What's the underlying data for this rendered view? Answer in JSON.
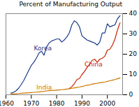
{
  "chart_data": {
    "type": "line",
    "title": "Percent of Manufacturing Output",
    "xlim": [
      1960,
      2006
    ],
    "xticks": [
      1960,
      1970,
      1980,
      1990,
      2000
    ],
    "ylim": [
      0,
      40
    ],
    "yticks": [
      0,
      10,
      20,
      30,
      40
    ],
    "series": [
      {
        "name": "Korea",
        "color": "#1a3a8a",
        "x": [
          1962,
          1963,
          1964,
          1965,
          1966,
          1967,
          1968,
          1969,
          1970,
          1971,
          1972,
          1973,
          1974,
          1975,
          1976,
          1977,
          1978,
          1979,
          1980,
          1981,
          1982,
          1983,
          1984,
          1985,
          1986,
          1987,
          1988,
          1989,
          1990,
          1991,
          1992,
          1993,
          1994,
          1995,
          1996,
          1997,
          1998,
          1999,
          2000,
          2001,
          2002,
          2003,
          2004,
          2005
        ],
        "values": [
          0.8,
          1.2,
          2.0,
          3.2,
          5.0,
          7.0,
          9.5,
          12.0,
          14.5,
          16.0,
          18.0,
          20.5,
          21.5,
          19.5,
          23.5,
          25.5,
          26.5,
          27.0,
          27.5,
          27.5,
          26.0,
          27.0,
          28.5,
          30.5,
          34.5,
          36.5,
          35.5,
          33.5,
          29.0,
          28.0,
          27.0,
          26.5,
          26.0,
          25.5,
          24.5,
          26.0,
          30.5,
          30.5,
          35.0,
          33.5,
          34.0,
          34.5,
          37.5,
          39.0
        ]
      },
      {
        "name": "China",
        "color": "#cc2200",
        "x": [
          1985,
          1986,
          1987,
          1988,
          1989,
          1990,
          1991,
          1992,
          1993,
          1994,
          1995,
          1996,
          1997,
          1998,
          1999,
          2000,
          2001,
          2002,
          2003,
          2004,
          2005
        ],
        "values": [
          3.0,
          4.0,
          5.5,
          7.5,
          8.0,
          10.0,
          11.5,
          13.5,
          15.0,
          17.0,
          17.5,
          16.0,
          17.5,
          18.0,
          19.0,
          22.0,
          22.5,
          24.5,
          27.5,
          32.0,
          35.5
        ]
      },
      {
        "name": "India",
        "color": "#cc7700",
        "x": [
          1962,
          1963,
          1964,
          1965,
          1966,
          1967,
          1968,
          1969,
          1970,
          1971,
          1972,
          1973,
          1974,
          1975,
          1976,
          1977,
          1978,
          1979,
          1980,
          1981,
          1982,
          1983,
          1984,
          1985,
          1986,
          1987,
          1988,
          1989,
          1990,
          1991,
          1992,
          1993,
          1994,
          1995,
          1996,
          1997,
          1998,
          1999,
          2000,
          2001,
          2002,
          2003,
          2004,
          2005
        ],
        "values": [
          0.4,
          0.4,
          0.5,
          0.6,
          0.7,
          0.8,
          0.9,
          1.0,
          1.1,
          1.2,
          1.3,
          1.4,
          1.6,
          1.7,
          1.9,
          2.0,
          2.1,
          2.2,
          2.3,
          2.4,
          2.5,
          2.6,
          2.8,
          3.0,
          3.2,
          3.4,
          3.6,
          3.8,
          4.1,
          4.4,
          4.7,
          4.9,
          5.2,
          5.5,
          5.7,
          5.9,
          6.1,
          6.3,
          6.6,
          6.9,
          7.2,
          7.5,
          7.9,
          8.3
        ]
      }
    ],
    "annotations": [
      {
        "text": "Korea",
        "x": 1971,
        "y": 22,
        "color": "#1a3a8a"
      },
      {
        "text": "China",
        "x": 1991,
        "y": 14,
        "color": "#cc2200"
      },
      {
        "text": "India",
        "x": 1972,
        "y": 2.5,
        "color": "#cc7700"
      }
    ]
  }
}
